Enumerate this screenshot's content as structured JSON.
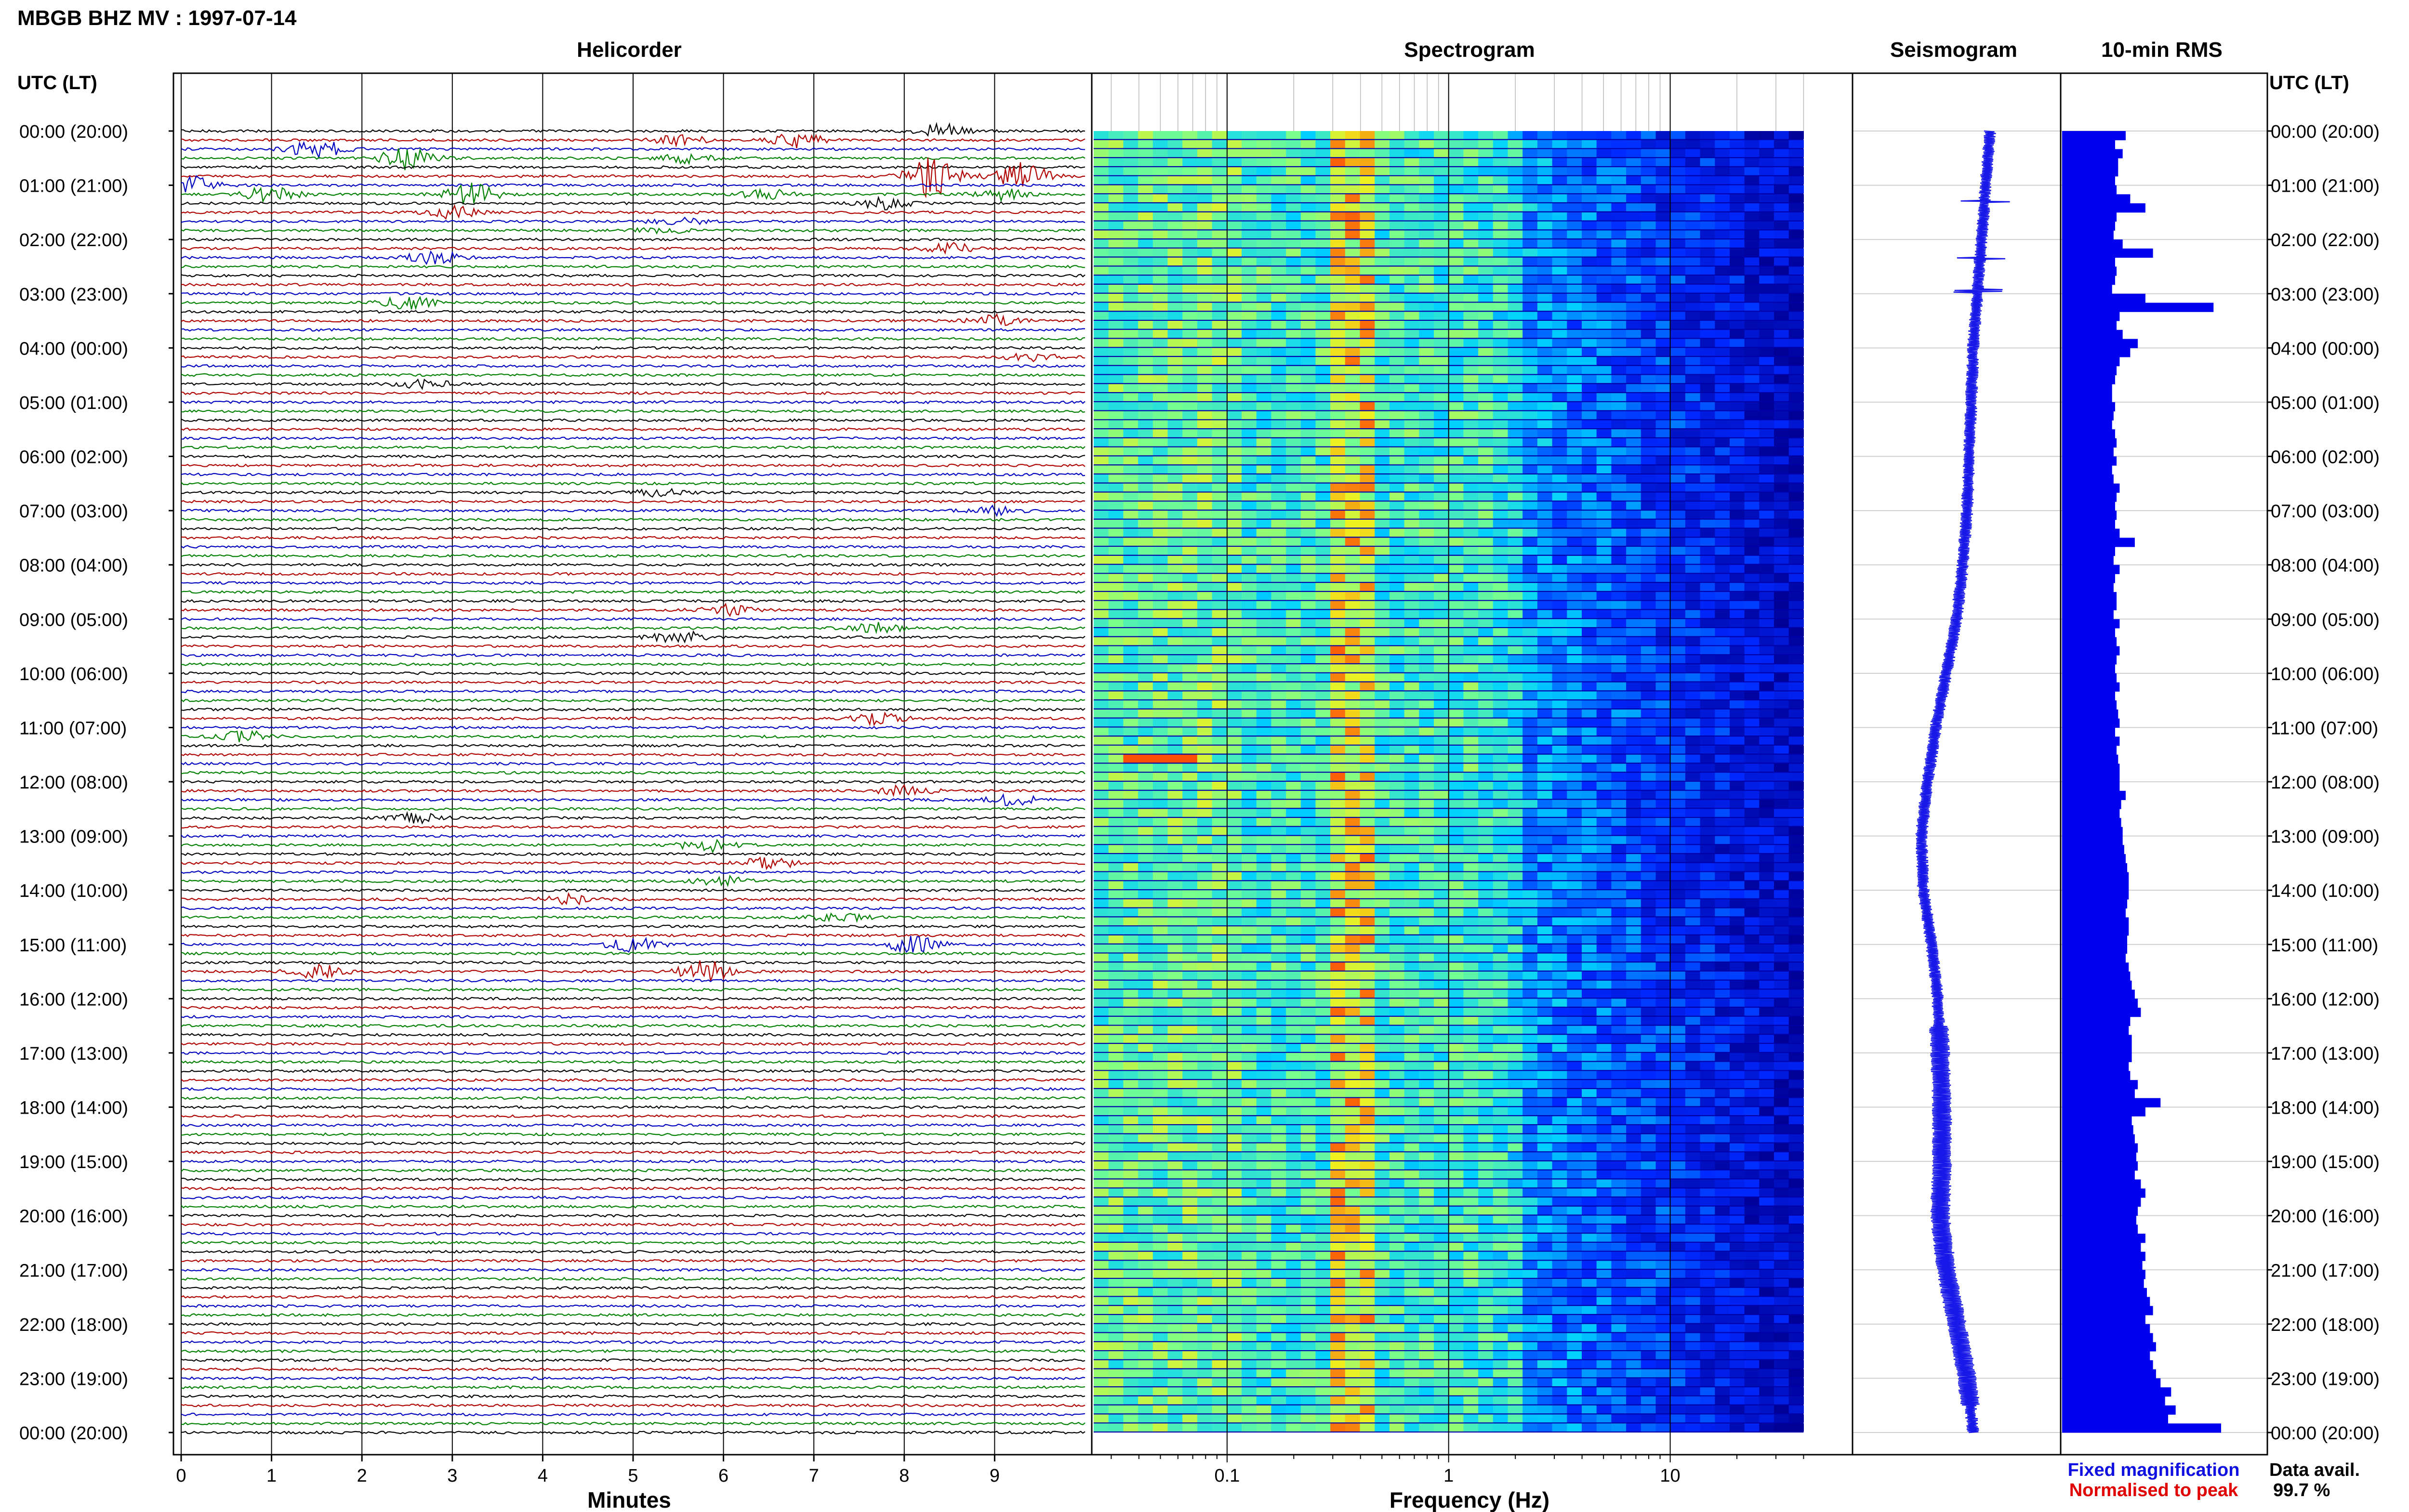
{
  "header": {
    "title": "MBGB BHZ MV : 1997-07-14",
    "utc_label_left": "UTC (LT)",
    "utc_label_right": "UTC (LT)"
  },
  "panels": {
    "helicorder": "Helicorder",
    "spectrogram": "Spectrogram",
    "seismogram": "Seismogram",
    "rms": "10-min RMS"
  },
  "time_labels": [
    "00:00 (20:00)",
    "01:00 (21:00)",
    "02:00 (22:00)",
    "03:00 (23:00)",
    "04:00 (00:00)",
    "05:00 (01:00)",
    "06:00 (02:00)",
    "07:00 (03:00)",
    "08:00 (04:00)",
    "09:00 (05:00)",
    "10:00 (06:00)",
    "11:00 (07:00)",
    "12:00 (08:00)",
    "13:00 (09:00)",
    "14:00 (10:00)",
    "15:00 (11:00)",
    "16:00 (12:00)",
    "17:00 (13:00)",
    "18:00 (14:00)",
    "19:00 (15:00)",
    "20:00 (16:00)",
    "21:00 (17:00)",
    "22:00 (18:00)",
    "23:00 (19:00)",
    "00:00 (20:00)"
  ],
  "footer": {
    "fixed_magnification": "Fixed magnification",
    "normalised_to_peak": "Normalised to peak",
    "data_avail_label": "Data avail.",
    "data_avail_value": "99.7 %"
  },
  "colors": {
    "trace_cycle": [
      "#000000",
      "#b00000",
      "#0000c0",
      "#008000"
    ],
    "seismogram": "#1818e8",
    "rms": "#0000ee",
    "fixed_magnification": "#1010e0",
    "normalised_to_peak": "#e00000",
    "grid": "#000000",
    "spec_bg": "#0000a8"
  },
  "chart_data": [
    {
      "type": "line",
      "name": "helicorder",
      "xlabel": "Minutes",
      "xlim": [
        0,
        10
      ],
      "x_ticks": [
        "0",
        "1",
        "2",
        "3",
        "4",
        "5",
        "6",
        "7",
        "8",
        "9"
      ],
      "rows_per_hour": 6,
      "row_minutes": 10,
      "events": [
        {
          "row": 0,
          "minute": 8.4,
          "amp": 1.5
        },
        {
          "row": 1,
          "minute": 5.5,
          "amp": 1.2
        },
        {
          "row": 1,
          "minute": 6.8,
          "amp": 1.6
        },
        {
          "row": 2,
          "minute": 1.5,
          "amp": 2.2
        },
        {
          "row": 3,
          "minute": 2.5,
          "amp": 2.5
        },
        {
          "row": 3,
          "minute": 5.6,
          "amp": 1.0
        },
        {
          "row": 5,
          "minute": 8.3,
          "amp": 5.0
        },
        {
          "row": 5,
          "minute": 9.3,
          "amp": 3.0
        },
        {
          "row": 6,
          "minute": 0.1,
          "amp": 2.0
        },
        {
          "row": 7,
          "minute": 1.0,
          "amp": 1.8
        },
        {
          "row": 7,
          "minute": 3.2,
          "amp": 2.5
        },
        {
          "row": 7,
          "minute": 6.5,
          "amp": 1.2
        },
        {
          "row": 7,
          "minute": 9.1,
          "amp": 1.2
        },
        {
          "row": 8,
          "minute": 7.8,
          "amp": 1.4
        },
        {
          "row": 9,
          "minute": 3.0,
          "amp": 1.3
        },
        {
          "row": 10,
          "minute": 5.5,
          "amp": 0.8
        },
        {
          "row": 11,
          "minute": 5.3,
          "amp": 0.6
        },
        {
          "row": 13,
          "minute": 8.5,
          "amp": 1.3
        },
        {
          "row": 14,
          "minute": 2.8,
          "amp": 1.5
        },
        {
          "row": 19,
          "minute": 2.5,
          "amp": 1.6
        },
        {
          "row": 21,
          "minute": 9.0,
          "amp": 1.2
        },
        {
          "row": 25,
          "minute": 9.4,
          "amp": 1.0
        },
        {
          "row": 28,
          "minute": 2.7,
          "amp": 1.0
        },
        {
          "row": 40,
          "minute": 5.3,
          "amp": 0.8
        },
        {
          "row": 42,
          "minute": 9.0,
          "amp": 1.0
        },
        {
          "row": 53,
          "minute": 6.0,
          "amp": 1.2
        },
        {
          "row": 55,
          "minute": 7.7,
          "amp": 1.1
        },
        {
          "row": 56,
          "minute": 5.5,
          "amp": 1.6
        },
        {
          "row": 65,
          "minute": 7.7,
          "amp": 1.6
        },
        {
          "row": 67,
          "minute": 0.7,
          "amp": 1.2
        },
        {
          "row": 73,
          "minute": 8.0,
          "amp": 1.4
        },
        {
          "row": 74,
          "minute": 9.2,
          "amp": 1.1
        },
        {
          "row": 76,
          "minute": 2.6,
          "amp": 1.0
        },
        {
          "row": 79,
          "minute": 5.8,
          "amp": 1.5
        },
        {
          "row": 81,
          "minute": 6.5,
          "amp": 1.4
        },
        {
          "row": 83,
          "minute": 6.0,
          "amp": 1.1
        },
        {
          "row": 85,
          "minute": 4.3,
          "amp": 1.2
        },
        {
          "row": 87,
          "minute": 7.3,
          "amp": 1.0
        },
        {
          "row": 90,
          "minute": 5.0,
          "amp": 1.6
        },
        {
          "row": 90,
          "minute": 8.1,
          "amp": 2.0
        },
        {
          "row": 93,
          "minute": 1.5,
          "amp": 1.6
        },
        {
          "row": 93,
          "minute": 5.8,
          "amp": 2.4
        }
      ]
    },
    {
      "type": "heatmap",
      "name": "spectrogram",
      "xlabel": "Frequency (Hz)",
      "x_scale": "log",
      "xlim": [
        0.025,
        50
      ],
      "x_ticks": [
        "0.1",
        "1",
        "10"
      ],
      "x_tick_values": [
        0.1,
        1,
        10
      ],
      "data_max_freq": 40,
      "hot_band_hz": [
        0.3,
        0.5
      ],
      "strong_event_row": 69
    },
    {
      "type": "line",
      "name": "seismogram",
      "orientation": "vertical",
      "drift_centers_fraction": [
        0.66,
        0.64,
        0.62,
        0.6,
        0.58,
        0.57,
        0.56,
        0.55,
        0.53,
        0.5,
        0.45,
        0.4,
        0.36,
        0.33,
        0.34,
        0.38,
        0.41,
        0.42,
        0.43,
        0.43,
        0.42,
        0.45,
        0.5,
        0.55,
        0.58
      ]
    },
    {
      "type": "bar",
      "name": "10-min RMS",
      "orientation": "horizontal",
      "n": 144,
      "values": [
        0.42,
        0.35,
        0.4,
        0.37,
        0.37,
        0.35,
        0.36,
        0.45,
        0.55,
        0.36,
        0.35,
        0.34,
        0.4,
        0.6,
        0.35,
        0.36,
        0.35,
        0.33,
        0.55,
        1.0,
        0.38,
        0.36,
        0.4,
        0.5,
        0.45,
        0.38,
        0.36,
        0.35,
        0.33,
        0.33,
        0.35,
        0.34,
        0.33,
        0.35,
        0.36,
        0.34,
        0.36,
        0.33,
        0.34,
        0.38,
        0.36,
        0.35,
        0.36,
        0.35,
        0.38,
        0.48,
        0.35,
        0.34,
        0.38,
        0.35,
        0.34,
        0.36,
        0.36,
        0.34,
        0.38,
        0.35,
        0.36,
        0.38,
        0.36,
        0.35,
        0.36,
        0.38,
        0.35,
        0.36,
        0.37,
        0.38,
        0.35,
        0.38,
        0.36,
        0.37,
        0.38,
        0.38,
        0.38,
        0.42,
        0.39,
        0.38,
        0.39,
        0.4,
        0.4,
        0.41,
        0.42,
        0.43,
        0.44,
        0.44,
        0.44,
        0.43,
        0.42,
        0.44,
        0.44,
        0.43,
        0.43,
        0.42,
        0.44,
        0.45,
        0.46,
        0.48,
        0.5,
        0.52,
        0.45,
        0.44,
        0.46,
        0.46,
        0.46,
        0.44,
        0.45,
        0.5,
        0.48,
        0.65,
        0.55,
        0.46,
        0.47,
        0.48,
        0.5,
        0.49,
        0.5,
        0.48,
        0.52,
        0.55,
        0.52,
        0.5,
        0.49,
        0.5,
        0.55,
        0.52,
        0.55,
        0.53,
        0.55,
        0.54,
        0.56,
        0.58,
        0.6,
        0.55,
        0.58,
        0.6,
        0.62,
        0.58,
        0.6,
        0.62,
        0.65,
        0.72,
        0.68,
        0.75,
        0.7,
        1.05
      ],
      "fixed_magnification": true
    }
  ]
}
